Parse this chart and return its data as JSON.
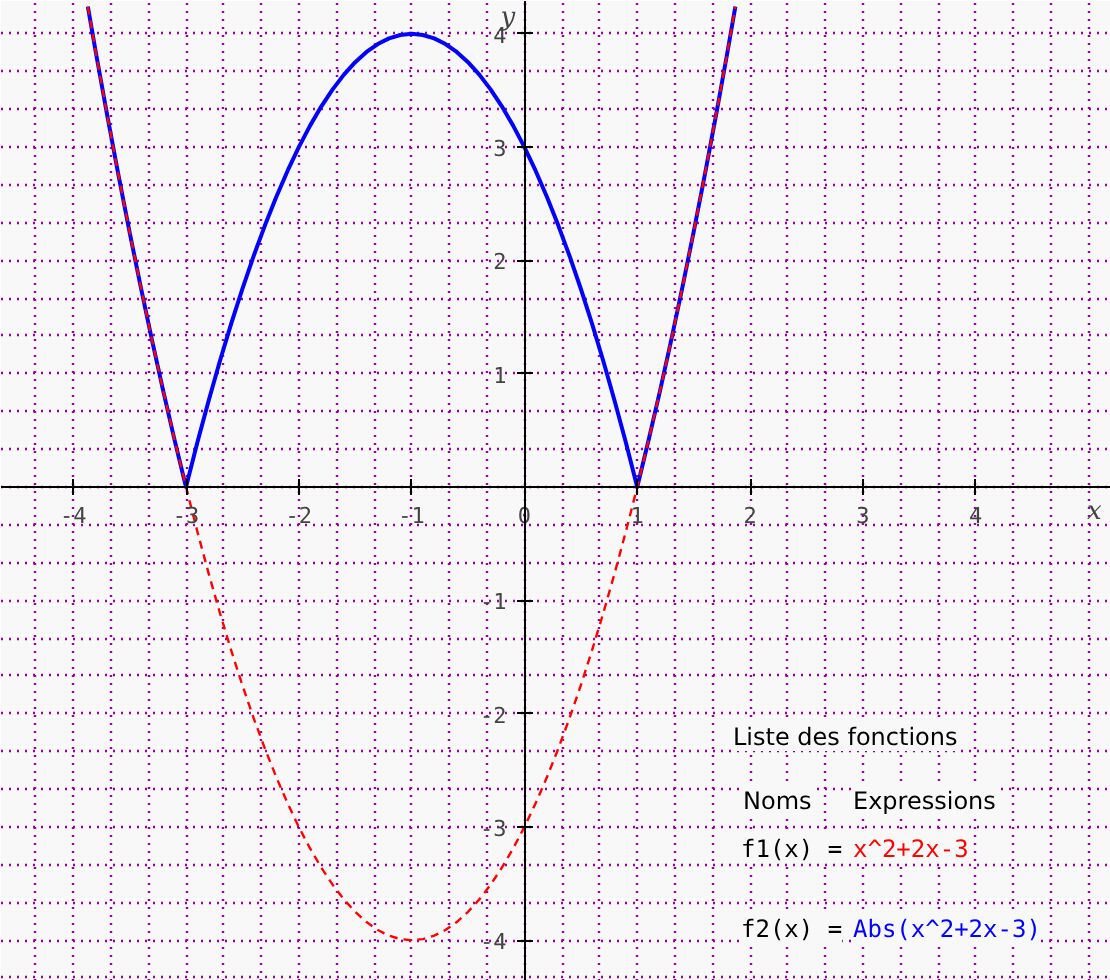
{
  "chart_data": {
    "type": "line",
    "xlabel": "x",
    "ylabel": "y",
    "xlim": [
      -4.64,
      5.2
    ],
    "ylim": [
      -4.36,
      4.29
    ],
    "xticks": [
      -4,
      -3,
      -2,
      -1,
      0,
      1,
      2,
      3,
      4
    ],
    "yticks": [
      -4,
      -3,
      -2,
      -1,
      {
        "value": 0,
        "label": null
      },
      1,
      2,
      3,
      4
    ],
    "grid": true,
    "x": [
      -3.87,
      -3.8,
      -3.7,
      -3.6,
      -3.5,
      -3.4,
      -3.3,
      -3.2,
      -3.1,
      -3.0,
      -2.9,
      -2.8,
      -2.7,
      -2.6,
      -2.5,
      -2.4,
      -2.3,
      -2.2,
      -2.1,
      -2.0,
      -1.9,
      -1.8,
      -1.7,
      -1.6,
      -1.5,
      -1.4,
      -1.3,
      -1.2,
      -1.1,
      -1.0,
      -0.9,
      -0.8,
      -0.7,
      -0.6,
      -0.5,
      -0.4,
      -0.3,
      -0.2,
      -0.1,
      0.0,
      0.1,
      0.2,
      0.3,
      0.4,
      0.5,
      0.6,
      0.7,
      0.8,
      0.9,
      1.0,
      1.1,
      1.2,
      1.3,
      1.4,
      1.5,
      1.6,
      1.7,
      1.8,
      1.87
    ],
    "series": [
      {
        "color": "#ff0000",
        "line_style": "dashed",
        "values": [
          4.24,
          3.84,
          3.29,
          2.76,
          2.25,
          1.76,
          1.29,
          0.84,
          0.41,
          0,
          -0.39,
          -0.76,
          -1.11,
          -1.44,
          -1.75,
          -2.04,
          -2.31,
          -2.56,
          -2.79,
          -3,
          -3.19,
          -3.36,
          -3.51,
          -3.64,
          -3.75,
          -3.84,
          -3.91,
          -3.96,
          -3.99,
          -4,
          -3.99,
          -3.96,
          -3.91,
          -3.84,
          -3.75,
          -3.64,
          -3.51,
          -3.36,
          -3.19,
          -3,
          -2.79,
          -2.56,
          -2.31,
          -2.04,
          -1.75,
          -1.44,
          -1.11,
          -0.76,
          -0.39,
          0,
          0.41,
          0.84,
          1.29,
          1.76,
          2.25,
          2.76,
          3.29,
          3.84,
          4.24
        ]
      },
      {
        "color": "#0000ff",
        "line_style": "solid",
        "values": [
          4.24,
          3.84,
          3.29,
          2.76,
          2.25,
          1.76,
          1.29,
          0.84,
          0.41,
          0,
          0.39,
          0.76,
          1.11,
          1.44,
          1.75,
          2.04,
          2.31,
          2.56,
          2.79,
          3,
          3.19,
          3.36,
          3.51,
          3.64,
          3.75,
          3.84,
          3.91,
          3.96,
          3.99,
          4,
          3.99,
          3.96,
          3.91,
          3.84,
          3.75,
          3.64,
          3.51,
          3.36,
          3.19,
          3,
          2.79,
          2.56,
          2.31,
          2.04,
          1.75,
          1.44,
          1.11,
          0.76,
          0.39,
          0,
          0.41,
          0.84,
          1.29,
          1.76,
          2.25,
          2.76,
          3.29,
          3.84,
          4.24
        ]
      }
    ],
    "annotations": [
      "Liste des fonctions",
      "Noms",
      "Expressions",
      "f1(x) =",
      "x^2+2x-3",
      "f2(x) =",
      "Abs(x^2+2x-3)"
    ]
  }
}
